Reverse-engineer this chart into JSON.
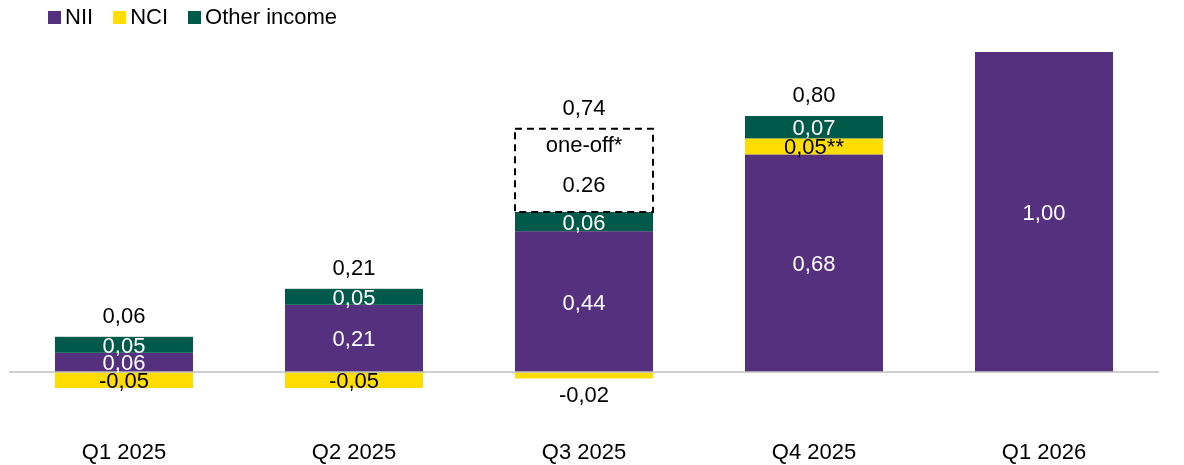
{
  "chart_data": {
    "type": "bar",
    "stacked": true,
    "legend": "top left",
    "categories": [
      "Q1 2025",
      "Q2 2025",
      "Q3 2025",
      "Q4 2025",
      "Q1 2026"
    ],
    "series": [
      {
        "name": "NII",
        "color": "#55307f",
        "values": [
          0.06,
          0.21,
          0.44,
          0.68,
          1.0
        ],
        "value_labels": [
          "0,06",
          "0,21",
          "0,44",
          "0,68",
          "1,00"
        ]
      },
      {
        "name": "NCI",
        "color": "#ffdd00",
        "values": [
          -0.05,
          -0.05,
          -0.02,
          0.05,
          null
        ],
        "value_labels": [
          "-0,05",
          "-0,05",
          "-0,02",
          "0,05**",
          null
        ]
      },
      {
        "name": "Other income",
        "color": "#005a4b",
        "values": [
          0.05,
          0.05,
          0.06,
          0.07,
          null
        ],
        "value_labels": [
          "0,05",
          "0,05",
          "0,06",
          "0,07",
          null
        ]
      },
      {
        "name": "one-off*",
        "color": "#ffffff",
        "line_style": "dashed",
        "values": [
          null,
          null,
          0.26,
          null,
          null
        ],
        "value_labels": [
          null,
          null,
          "0.26",
          null,
          null
        ]
      }
    ],
    "totals": [
      "0,06",
      "0,21",
      "0,74",
      "0,80",
      null
    ]
  }
}
